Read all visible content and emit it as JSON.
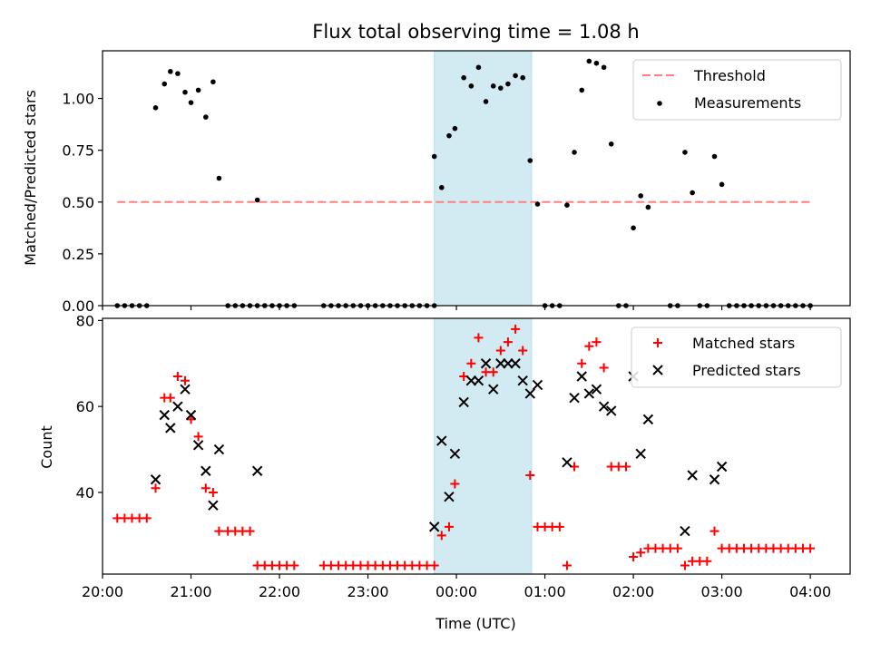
{
  "chart_data": [
    {
      "type": "scatter",
      "title": "Flux total observing time = 1.08 h",
      "xlabel": "",
      "ylabel": "Matched/Predicted stars",
      "xlim": [
        -4.0,
        4.45
      ],
      "ylim": [
        0.0,
        1.23
      ],
      "yticks": [
        {
          "v": 0.0,
          "label": "0.00"
        },
        {
          "v": 0.25,
          "label": "0.25"
        },
        {
          "v": 0.5,
          "label": "0.50"
        },
        {
          "v": 0.75,
          "label": "0.75"
        },
        {
          "v": 1.0,
          "label": "1.00"
        }
      ],
      "legend": {
        "position": "top-right",
        "entries": [
          "Threshold",
          "Measurements"
        ]
      },
      "shaded_region": {
        "x0": -0.25,
        "x1": 0.85,
        "color": "#add8e6"
      },
      "threshold": {
        "name": "Threshold",
        "value": 0.5,
        "x": [
          -3.833,
          4.0
        ],
        "color": "#ff7f7f"
      },
      "series": [
        {
          "name": "Measurements",
          "color": "#000000",
          "points": [
            [
              -3.833,
              0
            ],
            [
              -3.75,
              0
            ],
            [
              -3.667,
              0
            ],
            [
              -3.583,
              0
            ],
            [
              -3.5,
              0
            ],
            [
              -3.4,
              0.955
            ],
            [
              -3.3,
              1.07
            ],
            [
              -3.233,
              1.13
            ],
            [
              -3.15,
              1.12
            ],
            [
              -3.067,
              1.03
            ],
            [
              -3.0,
              0.98
            ],
            [
              -2.917,
              1.04
            ],
            [
              -2.833,
              0.91
            ],
            [
              -2.75,
              1.08
            ],
            [
              -2.683,
              0.615
            ],
            [
              -2.583,
              0
            ],
            [
              -2.5,
              0
            ],
            [
              -2.417,
              0
            ],
            [
              -2.333,
              0
            ],
            [
              -2.25,
              0
            ],
            [
              -2.25,
              0.51
            ],
            [
              -2.167,
              0
            ],
            [
              -2.083,
              0
            ],
            [
              -2.0,
              0
            ],
            [
              -1.917,
              0
            ],
            [
              -1.833,
              0
            ],
            [
              -1.5,
              0
            ],
            [
              -1.417,
              0
            ],
            [
              -1.333,
              0
            ],
            [
              -1.25,
              0
            ],
            [
              -1.167,
              0
            ],
            [
              -1.083,
              0
            ],
            [
              -1.0,
              0
            ],
            [
              -0.917,
              0
            ],
            [
              -0.833,
              0
            ],
            [
              -0.75,
              0
            ],
            [
              -0.667,
              0
            ],
            [
              -0.583,
              0
            ],
            [
              -0.5,
              0
            ],
            [
              -0.417,
              0
            ],
            [
              -0.333,
              0
            ],
            [
              -0.25,
              0
            ],
            [
              -0.25,
              0.72
            ],
            [
              -0.167,
              0.57
            ],
            [
              -0.083,
              0.82
            ],
            [
              -0.017,
              0.855
            ],
            [
              0.083,
              1.1
            ],
            [
              0.167,
              1.06
            ],
            [
              0.25,
              1.15
            ],
            [
              0.333,
              0.985
            ],
            [
              0.417,
              1.06
            ],
            [
              0.5,
              1.05
            ],
            [
              0.583,
              1.07
            ],
            [
              0.667,
              1.11
            ],
            [
              0.75,
              1.1
            ],
            [
              0.833,
              0.7
            ],
            [
              0.917,
              0.49
            ],
            [
              1.0,
              0
            ],
            [
              1.083,
              0
            ],
            [
              1.167,
              0
            ],
            [
              1.25,
              0.485
            ],
            [
              1.333,
              0.74
            ],
            [
              1.417,
              1.04
            ],
            [
              1.5,
              1.18
            ],
            [
              1.583,
              1.17
            ],
            [
              1.667,
              1.15
            ],
            [
              1.75,
              0.78
            ],
            [
              1.833,
              0
            ],
            [
              1.917,
              0
            ],
            [
              2.0,
              0.375
            ],
            [
              2.083,
              0.53
            ],
            [
              2.167,
              0.475
            ],
            [
              2.417,
              0
            ],
            [
              2.5,
              0
            ],
            [
              2.583,
              0.74
            ],
            [
              2.667,
              0.545
            ],
            [
              2.75,
              0
            ],
            [
              2.833,
              0
            ],
            [
              2.917,
              0.72
            ],
            [
              3.0,
              0.585
            ],
            [
              3.083,
              0
            ],
            [
              3.167,
              0
            ],
            [
              3.25,
              0
            ],
            [
              3.333,
              0
            ],
            [
              3.417,
              0
            ],
            [
              3.5,
              0
            ],
            [
              3.583,
              0
            ],
            [
              3.667,
              0
            ],
            [
              3.75,
              0
            ],
            [
              3.833,
              0
            ],
            [
              3.917,
              0
            ],
            [
              4.0,
              0
            ]
          ]
        }
      ]
    },
    {
      "type": "scatter",
      "title": "",
      "xlabel": "Time (UTC)",
      "ylabel": "Count",
      "xlim": [
        -4.0,
        4.45
      ],
      "ylim": [
        21,
        80.5
      ],
      "xticks": [
        {
          "v": -4,
          "label": "20:00"
        },
        {
          "v": -3,
          "label": "21:00"
        },
        {
          "v": -2,
          "label": "22:00"
        },
        {
          "v": -1,
          "label": "23:00"
        },
        {
          "v": 0,
          "label": "00:00"
        },
        {
          "v": 1,
          "label": "01:00"
        },
        {
          "v": 2,
          "label": "02:00"
        },
        {
          "v": 3,
          "label": "03:00"
        },
        {
          "v": 4,
          "label": "04:00"
        }
      ],
      "yticks": [
        {
          "v": 40,
          "label": "40"
        },
        {
          "v": 60,
          "label": "60"
        },
        {
          "v": 80,
          "label": "80"
        }
      ],
      "legend": {
        "position": "top-right",
        "entries": [
          "Matched stars",
          "Predicted stars"
        ]
      },
      "shaded_region": {
        "x0": -0.25,
        "x1": 0.85,
        "color": "#add8e6"
      },
      "series": [
        {
          "name": "Matched stars",
          "color": "#ff0000",
          "marker": "plus",
          "points": [
            [
              -3.833,
              34
            ],
            [
              -3.75,
              34
            ],
            [
              -3.667,
              34
            ],
            [
              -3.583,
              34
            ],
            [
              -3.5,
              34
            ],
            [
              -3.4,
              41
            ],
            [
              -3.3,
              62
            ],
            [
              -3.233,
              62
            ],
            [
              -3.15,
              67
            ],
            [
              -3.067,
              66
            ],
            [
              -3.0,
              57
            ],
            [
              -2.917,
              53
            ],
            [
              -2.833,
              41
            ],
            [
              -2.75,
              40
            ],
            [
              -2.683,
              31
            ],
            [
              -2.583,
              31
            ],
            [
              -2.5,
              31
            ],
            [
              -2.417,
              31
            ],
            [
              -2.333,
              31
            ],
            [
              -2.25,
              23
            ],
            [
              -2.167,
              23
            ],
            [
              -2.083,
              23
            ],
            [
              -2.0,
              23
            ],
            [
              -1.917,
              23
            ],
            [
              -1.833,
              23
            ],
            [
              -1.5,
              23
            ],
            [
              -1.417,
              23
            ],
            [
              -1.333,
              23
            ],
            [
              -1.25,
              23
            ],
            [
              -1.167,
              23
            ],
            [
              -1.083,
              23
            ],
            [
              -1.0,
              23
            ],
            [
              -0.917,
              23
            ],
            [
              -0.833,
              23
            ],
            [
              -0.75,
              23
            ],
            [
              -0.667,
              23
            ],
            [
              -0.583,
              23
            ],
            [
              -0.5,
              23
            ],
            [
              -0.417,
              23
            ],
            [
              -0.333,
              23
            ],
            [
              -0.25,
              23
            ],
            [
              -0.167,
              30
            ],
            [
              -0.083,
              32
            ],
            [
              -0.017,
              42
            ],
            [
              0.083,
              67
            ],
            [
              0.167,
              70
            ],
            [
              0.25,
              76
            ],
            [
              0.333,
              68
            ],
            [
              0.417,
              68
            ],
            [
              0.5,
              73
            ],
            [
              0.583,
              75
            ],
            [
              0.667,
              78
            ],
            [
              0.75,
              73
            ],
            [
              0.833,
              44
            ],
            [
              0.917,
              32
            ],
            [
              1.0,
              32
            ],
            [
              1.083,
              32
            ],
            [
              1.167,
              32
            ],
            [
              1.25,
              23
            ],
            [
              1.333,
              46
            ],
            [
              1.417,
              70
            ],
            [
              1.5,
              74
            ],
            [
              1.583,
              75
            ],
            [
              1.667,
              69
            ],
            [
              1.75,
              46
            ],
            [
              1.833,
              46
            ],
            [
              1.917,
              46
            ],
            [
              2.0,
              25
            ],
            [
              2.083,
              26
            ],
            [
              2.167,
              27
            ],
            [
              2.25,
              27
            ],
            [
              2.333,
              27
            ],
            [
              2.417,
              27
            ],
            [
              2.5,
              27
            ],
            [
              2.583,
              23
            ],
            [
              2.667,
              24
            ],
            [
              2.75,
              24
            ],
            [
              2.833,
              24
            ],
            [
              2.917,
              31
            ],
            [
              3.0,
              27
            ],
            [
              3.083,
              27
            ],
            [
              3.167,
              27
            ],
            [
              3.25,
              27
            ],
            [
              3.333,
              27
            ],
            [
              3.417,
              27
            ],
            [
              3.5,
              27
            ],
            [
              3.583,
              27
            ],
            [
              3.667,
              27
            ],
            [
              3.75,
              27
            ],
            [
              3.833,
              27
            ],
            [
              3.917,
              27
            ],
            [
              4.0,
              27
            ]
          ]
        },
        {
          "name": "Predicted stars",
          "color": "#000000",
          "marker": "x",
          "points": [
            [
              -3.4,
              43
            ],
            [
              -3.3,
              58
            ],
            [
              -3.233,
              55
            ],
            [
              -3.15,
              60
            ],
            [
              -3.067,
              64
            ],
            [
              -3.0,
              58
            ],
            [
              -2.917,
              51
            ],
            [
              -2.833,
              45
            ],
            [
              -2.75,
              37
            ],
            [
              -2.683,
              50
            ],
            [
              -2.25,
              45
            ],
            [
              -0.25,
              32
            ],
            [
              -0.167,
              52
            ],
            [
              -0.017,
              49
            ],
            [
              -0.083,
              39
            ],
            [
              0.083,
              61
            ],
            [
              0.167,
              66
            ],
            [
              0.25,
              66
            ],
            [
              0.333,
              70
            ],
            [
              0.417,
              64
            ],
            [
              0.5,
              70
            ],
            [
              0.583,
              70
            ],
            [
              0.667,
              70
            ],
            [
              0.75,
              66
            ],
            [
              0.833,
              63
            ],
            [
              0.917,
              65
            ],
            [
              1.25,
              47
            ],
            [
              1.333,
              62
            ],
            [
              1.417,
              67
            ],
            [
              1.5,
              63
            ],
            [
              1.583,
              64
            ],
            [
              1.667,
              60
            ],
            [
              1.75,
              59
            ],
            [
              2.0,
              67
            ],
            [
              2.083,
              49
            ],
            [
              2.167,
              57
            ],
            [
              2.583,
              31
            ],
            [
              2.667,
              44
            ],
            [
              2.917,
              43
            ],
            [
              3.0,
              46
            ]
          ]
        }
      ]
    }
  ]
}
